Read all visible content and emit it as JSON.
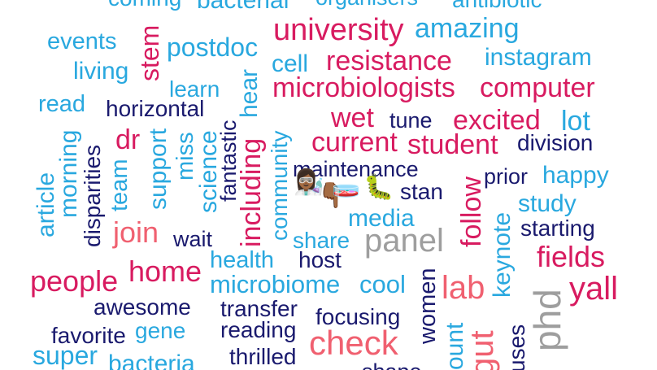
{
  "palette": {
    "sky": "#29a8df",
    "magenta": "#d81b60",
    "navy": "#1a1a6e",
    "coral": "#f06070",
    "gray": "#9e9e9e"
  },
  "words": [
    {
      "text": "coming",
      "c": "sky"
    },
    {
      "text": "bacterial",
      "c": "sky"
    },
    {
      "text": "organisers",
      "c": "sky"
    },
    {
      "text": "antibiotic",
      "c": "sky"
    },
    {
      "text": "university",
      "c": "magenta"
    },
    {
      "text": "amazing",
      "c": "sky"
    },
    {
      "text": "events",
      "c": "sky"
    },
    {
      "text": "postdoc",
      "c": "sky"
    },
    {
      "text": "stem",
      "c": "magenta"
    },
    {
      "text": "cell",
      "c": "sky"
    },
    {
      "text": "resistance",
      "c": "magenta"
    },
    {
      "text": "instagram",
      "c": "sky"
    },
    {
      "text": "living",
      "c": "sky"
    },
    {
      "text": "learn",
      "c": "sky"
    },
    {
      "text": "hear",
      "c": "sky"
    },
    {
      "text": "microbiologists",
      "c": "magenta"
    },
    {
      "text": "computer",
      "c": "magenta"
    },
    {
      "text": "read",
      "c": "sky"
    },
    {
      "text": "horizontal",
      "c": "navy"
    },
    {
      "text": "wet",
      "c": "magenta"
    },
    {
      "text": "tune",
      "c": "navy"
    },
    {
      "text": "excited",
      "c": "magenta"
    },
    {
      "text": "lot",
      "c": "sky"
    },
    {
      "text": "dr",
      "c": "magenta"
    },
    {
      "text": "current",
      "c": "magenta"
    },
    {
      "text": "student",
      "c": "magenta"
    },
    {
      "text": "division",
      "c": "navy"
    },
    {
      "text": "maintenance",
      "c": "navy"
    },
    {
      "text": "prior",
      "c": "navy"
    },
    {
      "text": "happy",
      "c": "sky"
    },
    {
      "text": "stan",
      "c": "navy"
    },
    {
      "text": "study",
      "c": "sky"
    },
    {
      "text": "media",
      "c": "sky"
    },
    {
      "text": "starting",
      "c": "navy"
    },
    {
      "text": "join",
      "c": "coral"
    },
    {
      "text": "wait",
      "c": "navy"
    },
    {
      "text": "share",
      "c": "sky"
    },
    {
      "text": "panel",
      "c": "gray"
    },
    {
      "text": "fields",
      "c": "magenta"
    },
    {
      "text": "health",
      "c": "sky"
    },
    {
      "text": "host",
      "c": "navy"
    },
    {
      "text": "people",
      "c": "magenta"
    },
    {
      "text": "home",
      "c": "magenta"
    },
    {
      "text": "microbiome",
      "c": "sky"
    },
    {
      "text": "cool",
      "c": "sky"
    },
    {
      "text": "lab",
      "c": "coral"
    },
    {
      "text": "yall",
      "c": "magenta"
    },
    {
      "text": "awesome",
      "c": "navy"
    },
    {
      "text": "transfer",
      "c": "navy"
    },
    {
      "text": "focusing",
      "c": "navy"
    },
    {
      "text": "favorite",
      "c": "navy"
    },
    {
      "text": "gene",
      "c": "sky"
    },
    {
      "text": "reading",
      "c": "navy"
    },
    {
      "text": "check",
      "c": "coral"
    },
    {
      "text": "super",
      "c": "sky"
    },
    {
      "text": "bacteria",
      "c": "sky"
    },
    {
      "text": "thrilled",
      "c": "navy"
    },
    {
      "text": "shape",
      "c": "navy"
    },
    {
      "text": "article",
      "c": "sky"
    },
    {
      "text": "morning",
      "c": "sky"
    },
    {
      "text": "disparities",
      "c": "navy"
    },
    {
      "text": "team",
      "c": "sky"
    },
    {
      "text": "support",
      "c": "sky"
    },
    {
      "text": "miss",
      "c": "sky"
    },
    {
      "text": "science",
      "c": "sky"
    },
    {
      "text": "fantastic",
      "c": "navy"
    },
    {
      "text": "including",
      "c": "magenta"
    },
    {
      "text": "community",
      "c": "sky"
    },
    {
      "text": "follow",
      "c": "magenta"
    },
    {
      "text": "keynote",
      "c": "sky"
    },
    {
      "text": "women",
      "c": "navy"
    },
    {
      "text": "phd",
      "c": "gray"
    },
    {
      "text": "count",
      "c": "sky"
    },
    {
      "text": "gut",
      "c": "coral"
    },
    {
      "text": "uses",
      "c": "navy"
    }
  ],
  "emojis": [
    {
      "glyph": "👩🏾‍🔬",
      "name": "scientist-emoji"
    },
    {
      "glyph": "👇🏾",
      "name": "pointing-down-emoji"
    },
    {
      "glyph": "🧫",
      "name": "petri-dish-emoji"
    },
    {
      "glyph": "🐛",
      "name": "caterpillar-emoji"
    }
  ]
}
